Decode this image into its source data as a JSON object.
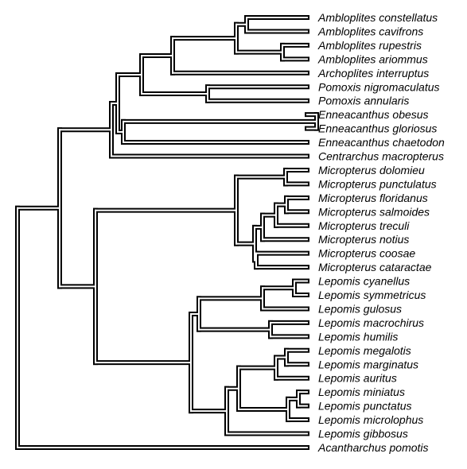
{
  "tree": {
    "line_color": "#000000",
    "background": "#ffffff",
    "style": "double-line rectangular cladogram",
    "taxa": [
      "Ambloplites constellatus",
      "Ambloplites cavifrons",
      "Ambloplites rupestris",
      "Ambloplites ariommus",
      "Archoplites interruptus",
      "Pomoxis nigromaculatus",
      "Pomoxis annularis",
      "Enneacanthus obesus",
      "Enneacanthus gloriosus",
      "Enneacanthus chaetodon",
      "Centrarchus macropterus",
      "Micropterus dolomieu",
      "Micropterus punctulatus",
      "Micropterus floridanus",
      "Micropterus salmoides",
      "Micropterus treculi",
      "Micropterus notius",
      "Micropterus coosae",
      "Micropterus cataractae",
      "Lepomis cyanellus",
      "Lepomis symmetricus",
      "Lepomis gulosus",
      "Lepomis macrochirus",
      "Lepomis humilis",
      "Lepomis megalotis",
      "Lepomis marginatus",
      "Lepomis auritus",
      "Lepomis miniatus",
      "Lepomis punctatus",
      "Lepomis microlophus",
      "Lepomis gibbosus",
      "Acantharchus pomotis"
    ]
  }
}
